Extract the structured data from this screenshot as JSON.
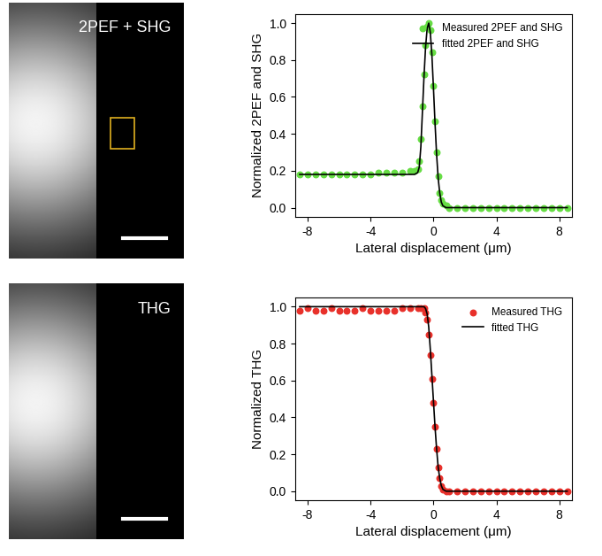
{
  "chart_data": [
    {
      "type": "image",
      "annotations": [
        "2PEF + SHG"
      ],
      "tick_labels": false
    },
    {
      "type": "line",
      "x_label": "Lateral displacement (μm)",
      "y_label": "Normalized 2PEF and SHG",
      "xlim": [
        -8.8,
        8.8
      ],
      "xticks": [
        -8,
        -4,
        0,
        4,
        8
      ],
      "ylim": [
        -0.05,
        1.05
      ],
      "yticks": [
        {
          "value": 0.0,
          "label": "0.0"
        },
        0.2,
        0.4,
        0.6,
        0.8,
        {
          "value": 1.0,
          "label": "1.0"
        }
      ],
      "legend": "upper right",
      "series": [
        {
          "name": "Measured 2PEF and SHG",
          "type": "scatter",
          "color": "#66dd44",
          "marker": "o",
          "x": [
            -8.5,
            -8.0,
            -7.5,
            -7.0,
            -6.5,
            -6.0,
            -5.5,
            -5.0,
            -4.5,
            -4.0,
            -3.5,
            -3.0,
            -2.5,
            -2.0,
            -1.5,
            -1.2,
            -1.0,
            -0.9,
            -0.8,
            -0.7,
            -0.6,
            -0.5,
            -0.4,
            -0.3,
            -0.2,
            -0.1,
            0.0,
            0.1,
            0.2,
            0.3,
            0.4,
            0.5,
            0.6,
            0.8,
            1.0,
            1.5,
            2.0,
            2.5,
            3.0,
            3.5,
            4.0,
            4.5,
            5.0,
            5.5,
            6.0,
            6.5,
            7.0,
            7.5,
            8.0,
            8.5
          ],
          "values": [
            0.18,
            0.18,
            0.18,
            0.18,
            0.18,
            0.18,
            0.18,
            0.18,
            0.18,
            0.18,
            0.19,
            0.19,
            0.19,
            0.19,
            0.2,
            0.2,
            0.21,
            0.25,
            0.37,
            0.55,
            0.72,
            0.88,
            0.98,
            1.0,
            0.96,
            0.84,
            0.66,
            0.47,
            0.3,
            0.17,
            0.08,
            0.04,
            0.02,
            0.01,
            0.0,
            0,
            0,
            0,
            0,
            0,
            0,
            0,
            0,
            0,
            0,
            0,
            0,
            0,
            0,
            0
          ]
        },
        {
          "name": "fitted 2PEF and SHG",
          "type": "line",
          "color": "#000000",
          "line_style": "-",
          "x": [
            -8.5,
            -8.0,
            -7.5,
            -7.0,
            -6.5,
            -6.0,
            -5.5,
            -5.0,
            -4.5,
            -4.0,
            -3.5,
            -3.0,
            -2.5,
            -2.0,
            -1.5,
            -1.2,
            -1.0,
            -0.9,
            -0.8,
            -0.7,
            -0.6,
            -0.5,
            -0.4,
            -0.3,
            -0.2,
            -0.1,
            0.0,
            0.1,
            0.2,
            0.3,
            0.4,
            0.5,
            0.6,
            0.8,
            1.0,
            1.5,
            2.0,
            2.5,
            3.0,
            3.5,
            4.0,
            4.5,
            5.0,
            5.5,
            6.0,
            6.5,
            7.0,
            7.5,
            8.0,
            8.5
          ],
          "values": [
            0.18,
            0.18,
            0.18,
            0.18,
            0.18,
            0.18,
            0.18,
            0.18,
            0.18,
            0.18,
            0.18,
            0.18,
            0.18,
            0.18,
            0.18,
            0.18,
            0.19,
            0.22,
            0.33,
            0.52,
            0.71,
            0.87,
            0.97,
            1.0,
            0.95,
            0.83,
            0.65,
            0.46,
            0.29,
            0.16,
            0.08,
            0.03,
            0.01,
            0.0,
            0.0,
            0,
            0,
            0,
            0,
            0,
            0,
            0,
            0,
            0,
            0,
            0,
            0,
            0,
            0,
            0
          ]
        }
      ]
    },
    {
      "type": "image",
      "annotations": [
        "THG"
      ],
      "tick_labels": false
    },
    {
      "type": "line",
      "x_label": "Lateral displacement (μm)",
      "y_label": "Normalized THG",
      "xlim": [
        -8.8,
        8.8
      ],
      "xticks": [
        -8,
        -4,
        0,
        4,
        8
      ],
      "ylim": [
        -0.05,
        1.05
      ],
      "yticks": [
        {
          "value": 0.0,
          "label": "0.0"
        },
        0.2,
        0.4,
        0.6,
        0.8,
        {
          "value": 1.0,
          "label": "1.0"
        }
      ],
      "legend": "upper right",
      "series": [
        {
          "name": "Measured THG",
          "type": "scatter",
          "color": "#e8302a",
          "marker": "o",
          "x": [
            -8.5,
            -8.0,
            -7.5,
            -7.0,
            -6.5,
            -6.0,
            -5.5,
            -5.0,
            -4.5,
            -4.0,
            -3.5,
            -3.0,
            -2.5,
            -2.0,
            -1.5,
            -1.0,
            -0.8,
            -0.6,
            -0.5,
            -0.4,
            -0.3,
            -0.2,
            -0.1,
            0.0,
            0.1,
            0.2,
            0.3,
            0.4,
            0.5,
            0.6,
            0.8,
            1.0,
            1.5,
            2.0,
            2.5,
            3.0,
            3.5,
            4.0,
            4.5,
            5.0,
            5.5,
            6.0,
            6.5,
            7.0,
            7.5,
            8.0,
            8.5
          ],
          "values": [
            0.98,
            0.99,
            0.98,
            0.98,
            0.99,
            0.98,
            0.98,
            0.98,
            0.99,
            0.98,
            0.98,
            0.98,
            0.98,
            0.99,
            0.99,
            0.99,
            0.99,
            0.99,
            0.97,
            0.93,
            0.85,
            0.74,
            0.61,
            0.48,
            0.35,
            0.23,
            0.13,
            0.07,
            0.03,
            0.01,
            0.0,
            0.0,
            0,
            0,
            0,
            0,
            0,
            0,
            0,
            0,
            0,
            0,
            0,
            0,
            0,
            0,
            0
          ]
        },
        {
          "name": "fitted THG",
          "type": "line",
          "color": "#000000",
          "line_style": "-",
          "x": [
            -8.5,
            -8.0,
            -7.5,
            -7.0,
            -6.5,
            -6.0,
            -5.5,
            -5.0,
            -4.5,
            -4.0,
            -3.5,
            -3.0,
            -2.5,
            -2.0,
            -1.5,
            -1.0,
            -0.8,
            -0.6,
            -0.5,
            -0.4,
            -0.3,
            -0.2,
            -0.1,
            0.0,
            0.1,
            0.2,
            0.3,
            0.4,
            0.5,
            0.6,
            0.8,
            1.0,
            1.5,
            2.0,
            2.5,
            3.0,
            3.5,
            4.0,
            4.5,
            5.0,
            5.5,
            6.0,
            6.5,
            7.0,
            7.5,
            8.0,
            8.5
          ],
          "values": [
            1.0,
            1.0,
            1.0,
            1.0,
            1.0,
            1.0,
            1.0,
            1.0,
            1.0,
            1.0,
            1.0,
            1.0,
            1.0,
            1.0,
            1.0,
            1.0,
            1.0,
            1.0,
            0.99,
            0.96,
            0.89,
            0.77,
            0.63,
            0.49,
            0.35,
            0.23,
            0.13,
            0.07,
            0.03,
            0.01,
            0.0,
            0.0,
            0,
            0,
            0,
            0,
            0,
            0,
            0,
            0,
            0,
            0,
            0,
            0,
            0,
            0,
            0
          ]
        }
      ]
    }
  ]
}
